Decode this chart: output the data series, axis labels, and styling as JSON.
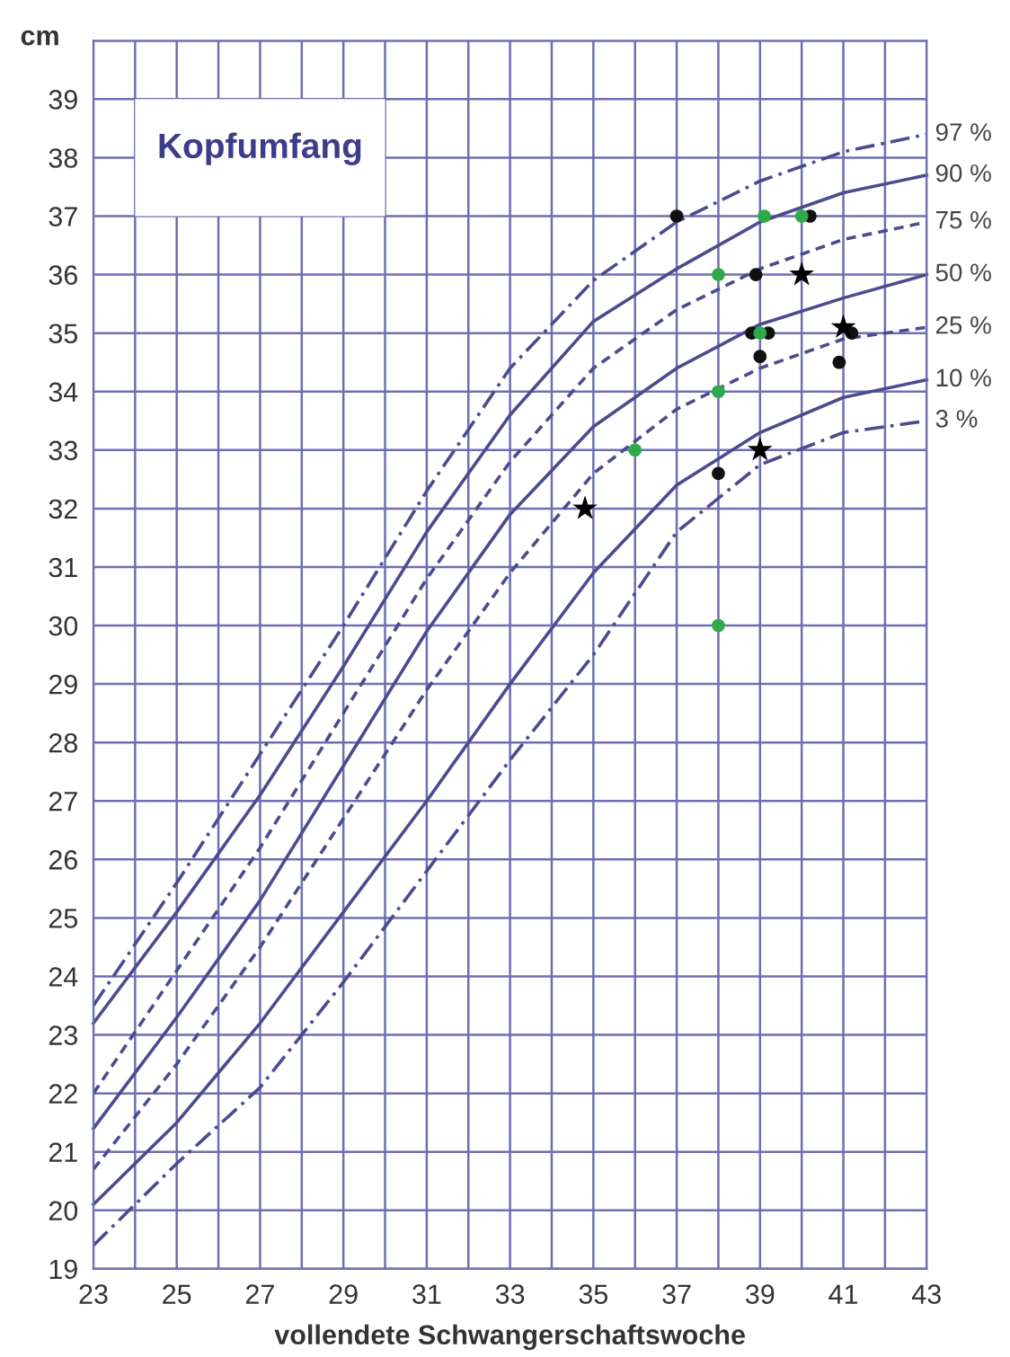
{
  "chart_data": {
    "type": "line",
    "title": "Kopfumfang",
    "xlabel": "vollendete Schwangerschaftswoche",
    "ylabel": "cm",
    "xlim": [
      23,
      43
    ],
    "ylim": [
      19,
      40
    ],
    "xticks": [
      23,
      {
        "value": 24,
        "label": null
      },
      25,
      {
        "value": 26,
        "label": null
      },
      27,
      {
        "value": 28,
        "label": null
      },
      29,
      {
        "value": 30,
        "label": null
      },
      31,
      {
        "value": 32,
        "label": null
      },
      33,
      {
        "value": 34,
        "label": null
      },
      35,
      {
        "value": 36,
        "label": null
      },
      37,
      {
        "value": 38,
        "label": null
      },
      39,
      {
        "value": 40,
        "label": null
      },
      41,
      {
        "value": 42,
        "label": null
      },
      43
    ],
    "yticks": [
      19,
      20,
      21,
      22,
      23,
      24,
      25,
      26,
      27,
      28,
      29,
      30,
      31,
      32,
      33,
      34,
      35,
      36,
      37,
      38,
      39,
      {
        "value": 40,
        "label": null
      }
    ],
    "grid": true,
    "legend": false,
    "marker": "none",
    "x": [
      23,
      25,
      27,
      29,
      31,
      33,
      35,
      37,
      39,
      41,
      43
    ],
    "series": [
      {
        "name": "97 %",
        "color": "#4b4b8f",
        "line_style": "dashdot",
        "values": [
          23.5,
          25.6,
          27.8,
          30.0,
          32.3,
          34.4,
          35.9,
          36.9,
          37.6,
          38.1,
          38.4
        ]
      },
      {
        "name": "90 %",
        "color": "#4b4b8f",
        "line_style": "solid",
        "values": [
          23.2,
          25.1,
          27.1,
          29.3,
          31.6,
          33.6,
          35.2,
          36.1,
          36.9,
          37.4,
          37.7
        ]
      },
      {
        "name": "75 %",
        "color": "#4b4b8f",
        "line_style": "dashed",
        "values": [
          22.0,
          24.1,
          26.2,
          28.5,
          30.8,
          32.8,
          34.4,
          35.4,
          36.1,
          36.6,
          36.9
        ]
      },
      {
        "name": "50 %",
        "color": "#4b4b8f",
        "line_style": "solid",
        "values": [
          21.4,
          23.3,
          25.3,
          27.6,
          29.9,
          31.9,
          33.4,
          34.4,
          35.15,
          35.6,
          36.0
        ]
      },
      {
        "name": "25 %",
        "color": "#4b4b8f",
        "line_style": "dashed",
        "values": [
          20.7,
          22.5,
          24.5,
          26.7,
          28.9,
          30.9,
          32.6,
          33.7,
          34.4,
          34.9,
          35.1
        ]
      },
      {
        "name": "10 %",
        "color": "#4b4b8f",
        "line_style": "solid",
        "values": [
          20.1,
          21.5,
          23.2,
          25.1,
          27.0,
          29.0,
          30.9,
          32.4,
          33.3,
          33.9,
          34.2
        ]
      },
      {
        "name": "3 %",
        "color": "#4b4b8f",
        "line_style": "dashdot",
        "values": [
          19.4,
          20.8,
          22.1,
          23.9,
          25.8,
          27.7,
          29.5,
          31.6,
          32.75,
          33.3,
          33.5
        ]
      },
      {
        "type": "scatter",
        "marker": "circle",
        "color": "#111111",
        "x": [
          37,
          38.9,
          40.2,
          38.8,
          39.2,
          39.0,
          40.9,
          41.2,
          38.0
        ],
        "values": [
          37.0,
          36.0,
          37.0,
          35.0,
          35.0,
          34.6,
          34.5,
          35.0,
          32.6
        ]
      },
      {
        "type": "scatter",
        "marker": "circle",
        "color": "#2eaa4a",
        "x": [
          39.1,
          40.0,
          38.0,
          39.0,
          38.0,
          36.0,
          38.0
        ],
        "values": [
          37.0,
          37.0,
          36.0,
          35.0,
          34.0,
          33.0,
          30.0
        ]
      },
      {
        "type": "scatter",
        "marker": "star",
        "color": "#000000",
        "x": [
          40.0,
          41.0,
          39.0,
          34.8
        ],
        "values": [
          36.0,
          35.1,
          33.0,
          32.0
        ]
      }
    ]
  }
}
